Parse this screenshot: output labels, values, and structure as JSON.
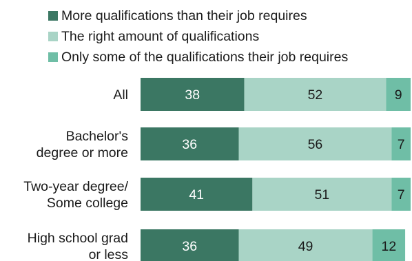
{
  "chart_data": {
    "type": "bar",
    "orientation": "horizontal",
    "stacked": true,
    "categories": [
      [
        "All"
      ],
      [
        "Bachelor's",
        "degree or more"
      ],
      [
        "Two-year degree/",
        "Some college"
      ],
      [
        "High school grad",
        "or less"
      ]
    ],
    "series": [
      {
        "name": "More qualifications than their job requires",
        "values": [
          38,
          36,
          41,
          36
        ],
        "color": "#3b7763",
        "label_color": "#ffffff"
      },
      {
        "name": "The right amount of qualifications",
        "values": [
          52,
          56,
          51,
          49
        ],
        "color": "#a9d4c6",
        "label_color": "#1a1a1a"
      },
      {
        "name": "Only some of the qualifications their job requires",
        "values": [
          9,
          7,
          7,
          12
        ],
        "color": "#6fbea6",
        "label_color": "#1a1a1a"
      }
    ],
    "xlim": [
      0,
      99
    ],
    "grid": false,
    "legend_position": "top"
  }
}
